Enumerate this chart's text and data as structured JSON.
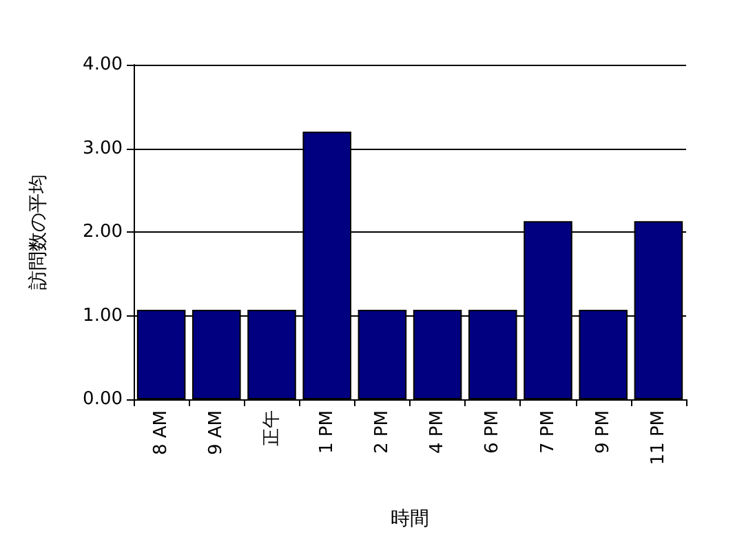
{
  "chart_data": {
    "type": "bar",
    "xlabel": "時間",
    "ylabel": "訪問数の平均",
    "categories": [
      "8 AM",
      "9 AM",
      "正午",
      "1 PM",
      "2 PM",
      "4 PM",
      "6 PM",
      "7 PM",
      "9 PM",
      "11 PM"
    ],
    "values": [
      1.07,
      1.07,
      1.07,
      3.2,
      1.07,
      1.07,
      1.07,
      2.13,
      1.07,
      2.13
    ],
    "color": "#000080",
    "ylim": [
      0,
      4
    ],
    "yticks": [
      {
        "value": 0,
        "label": "0.00"
      },
      {
        "value": 1,
        "label": "1.00"
      },
      {
        "value": 2,
        "label": "2.00"
      },
      {
        "value": 3,
        "label": "3.00"
      },
      {
        "value": 4,
        "label": "4.00"
      }
    ],
    "grid": "y"
  }
}
